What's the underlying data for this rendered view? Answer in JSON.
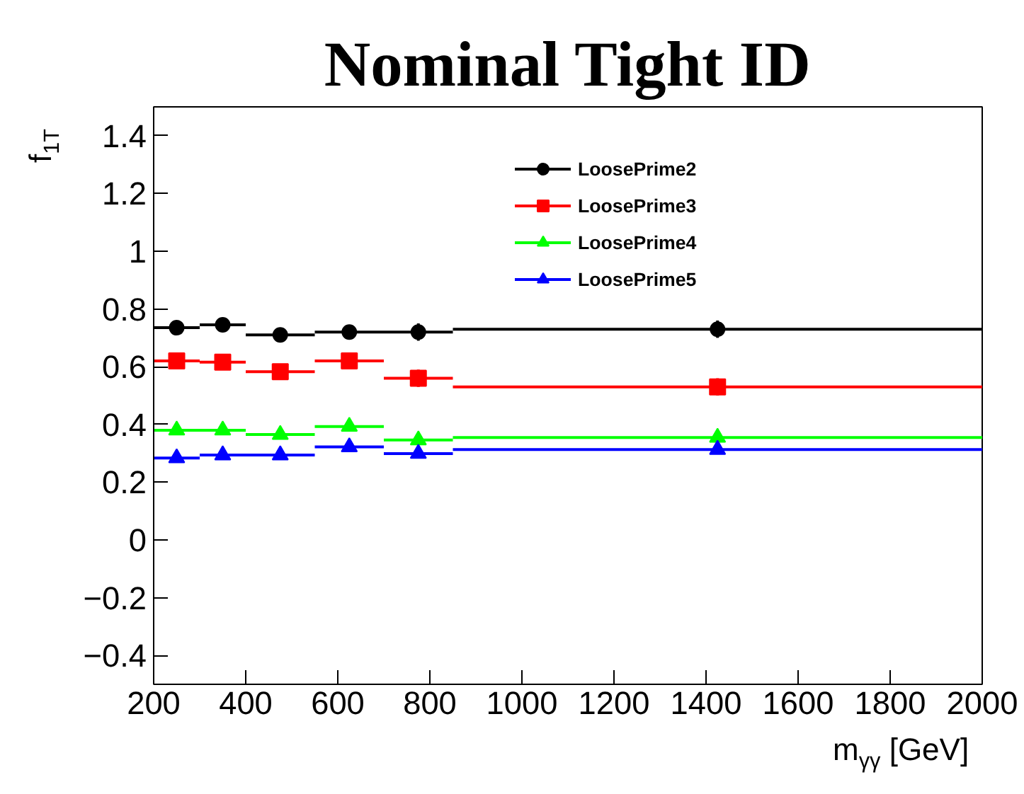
{
  "chart_data": {
    "type": "scatter",
    "title": "Nominal Tight ID",
    "xlabel": "m$_{γγ}$ [GeV]",
    "ylabel": "f$_{1T}$",
    "x": [
      250,
      350,
      475,
      625,
      775,
      1425
    ],
    "series": [
      {
        "name": "LoosePrime2",
        "color": "#000000",
        "marker": "circle",
        "values": [
          0.735,
          0.745,
          0.71,
          0.72,
          0.72,
          0.73
        ],
        "xerrors": [
          50,
          50,
          75,
          75,
          75,
          575
        ],
        "errors": [
          null,
          null,
          null,
          null,
          0.03,
          0.03
        ]
      },
      {
        "name": "LoosePrime3",
        "color": "#ff0000",
        "marker": "square",
        "values": [
          0.62,
          0.616,
          0.583,
          0.62,
          0.56,
          0.53
        ],
        "xerrors": [
          50,
          50,
          75,
          75,
          75,
          575
        ],
        "errors": [
          null,
          null,
          null,
          null,
          0.03,
          0.03
        ]
      },
      {
        "name": "LoosePrime4",
        "color": "#00ff00",
        "marker": "triangle",
        "values": [
          0.38,
          0.38,
          0.365,
          0.393,
          0.346,
          0.355
        ],
        "xerrors": [
          50,
          50,
          75,
          75,
          75,
          575
        ],
        "errors": [
          null,
          null,
          null,
          null,
          null,
          null
        ]
      },
      {
        "name": "LoosePrime5",
        "color": "#0000ff",
        "marker": "triangle",
        "values": [
          0.284,
          0.294,
          0.294,
          0.322,
          0.299,
          0.313
        ],
        "xerrors": [
          50,
          50,
          75,
          75,
          75,
          575
        ],
        "errors": [
          null,
          null,
          null,
          null,
          null,
          null
        ]
      }
    ],
    "xlim": [
      200,
      2000
    ],
    "ylim": [
      -0.5,
      1.5
    ],
    "xticks": [
      200,
      400,
      600,
      800,
      1000,
      1200,
      1400,
      1600,
      1800,
      2000
    ],
    "yticks": [
      {
        "value": -0.4,
        "label": "−0.4"
      },
      {
        "value": -0.2,
        "label": "−0.2"
      },
      0,
      0.2,
      0.4,
      0.6,
      0.8,
      1,
      1.2,
      1.4
    ],
    "grid": false,
    "legend": "top right"
  }
}
